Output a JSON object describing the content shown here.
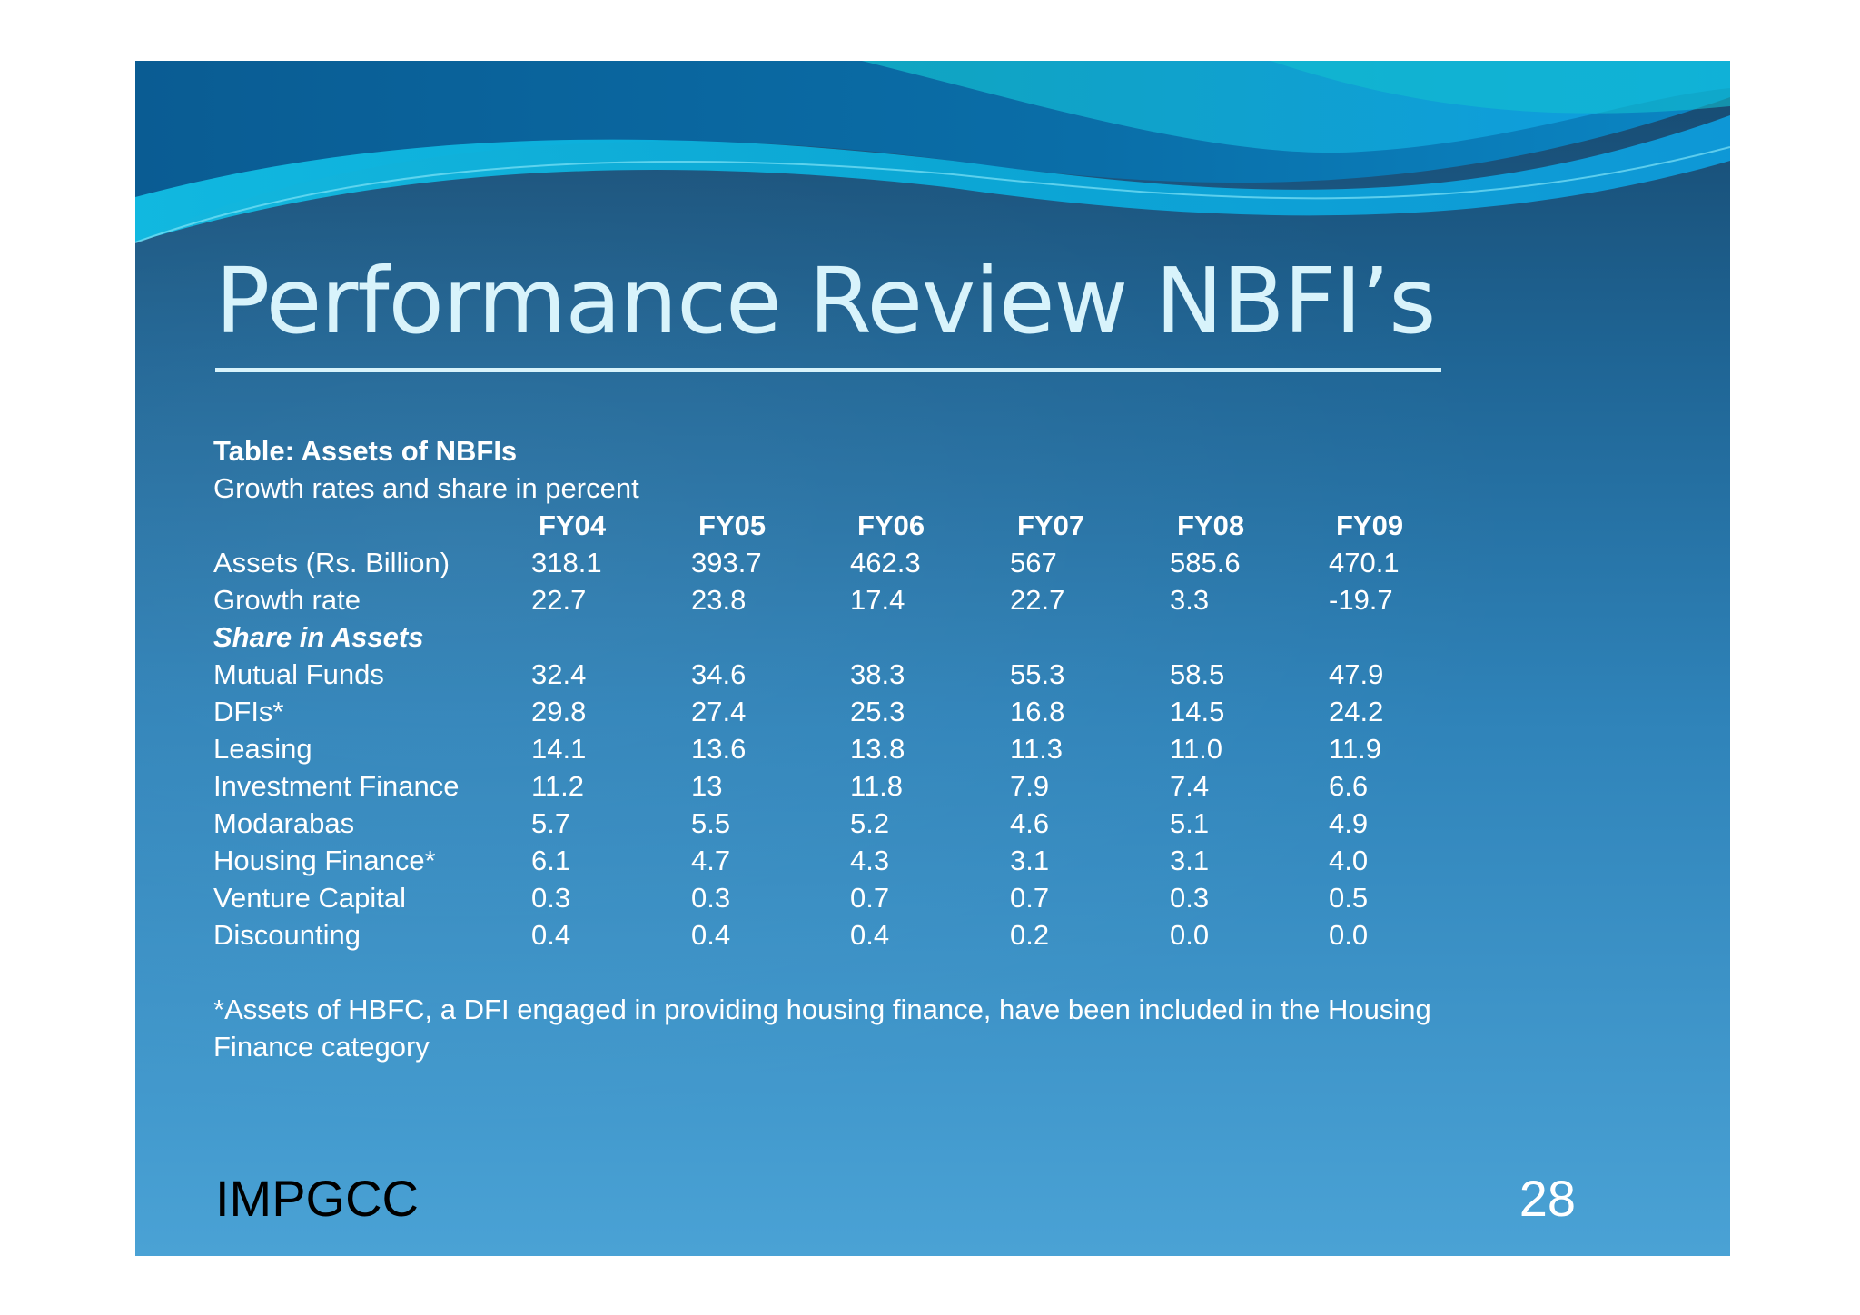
{
  "slide": {
    "title": "Performance Review NBFI’s",
    "table_title": "Table: Assets of NBFIs",
    "table_subtitle": "Growth rates and share in percent",
    "columns": [
      "FY04",
      "FY05",
      "FY06",
      "FY07",
      "FY08",
      "FY09"
    ],
    "rows": [
      {
        "label": "Assets (Rs. Billion)",
        "values": [
          "318.1",
          "393.7",
          "462.3",
          "567",
          "585.6",
          "470.1"
        ]
      },
      {
        "label": "Growth rate",
        "values": [
          "22.7",
          "23.8",
          "17.4",
          "22.7",
          "3.3",
          "-19.7"
        ]
      },
      {
        "label": "Share in Assets",
        "section": true,
        "values": []
      },
      {
        "label": "Mutual Funds",
        "values": [
          "32.4",
          "34.6",
          "38.3",
          "55.3",
          "58.5",
          "47.9"
        ]
      },
      {
        "label": "DFIs*",
        "values": [
          "29.8",
          "27.4",
          "25.3",
          "16.8",
          "14.5",
          "24.2"
        ]
      },
      {
        "label": "Leasing",
        "values": [
          "14.1",
          "13.6",
          "13.8",
          "11.3",
          "11.0",
          "11.9"
        ]
      },
      {
        "label": "Investment Finance",
        "values": [
          "11.2",
          "13",
          "11.8",
          "7.9",
          "7.4",
          "6.6"
        ]
      },
      {
        "label": "Modarabas",
        "values": [
          "5.7",
          "5.5",
          "5.2",
          "4.6",
          "5.1",
          "4.9"
        ]
      },
      {
        "label": "Housing Finance*",
        "values": [
          "6.1",
          "4.7",
          "4.3",
          "3.1",
          "3.1",
          "4.0"
        ]
      },
      {
        "label": "Venture Capital",
        "values": [
          "0.3",
          "0.3",
          "0.7",
          "0.7",
          "0.3",
          "0.5"
        ]
      },
      {
        "label": "Discounting",
        "values": [
          "0.4",
          "0.4",
          "0.4",
          "0.2",
          "0.0",
          "0.0"
        ]
      }
    ],
    "footnote_line1": "*Assets of HBFC, a DFI engaged in providing housing finance, have been included in the Housing",
    "footnote_line2": "Finance category",
    "footer_left": "IMPGCC",
    "page_number": "28"
  },
  "colors": {
    "title_text": "#d8f3fb",
    "body_text": "#ffffff",
    "footer_left_text": "#000000",
    "background_top": "#17496f",
    "background_bottom": "#4aa2d5",
    "wave_accent": "#0fb6e0"
  }
}
